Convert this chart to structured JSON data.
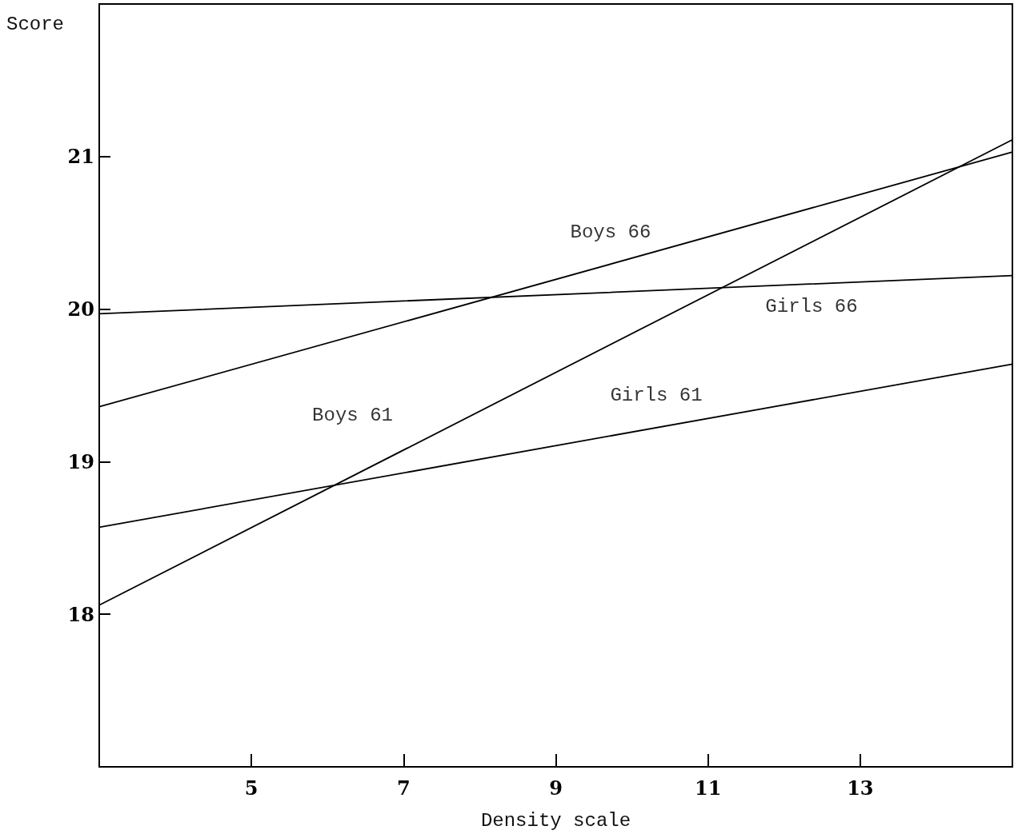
{
  "chart_data": {
    "type": "line",
    "xlabel": "Density scale",
    "ylabel": "Score",
    "xlim": [
      3,
      15
    ],
    "xticks": [
      5,
      7,
      9,
      11,
      13
    ],
    "ylim": [
      17,
      22
    ],
    "yticks": [
      18,
      19,
      20,
      21
    ],
    "x": [
      3,
      15
    ],
    "grid": false,
    "legend": false,
    "marker": "none",
    "line_style": "solid",
    "series": [
      {
        "name": "Boys 66",
        "color": "#000000",
        "values": [
          19.36,
          21.03
        ]
      },
      {
        "name": "Girls 66",
        "color": "#000000",
        "values": [
          19.97,
          20.22
        ]
      },
      {
        "name": "Boys 61",
        "color": "#000000",
        "values": [
          18.06,
          21.11
        ]
      },
      {
        "name": "Girls 61",
        "color": "#000000",
        "values": [
          18.57,
          19.64
        ]
      }
    ]
  }
}
